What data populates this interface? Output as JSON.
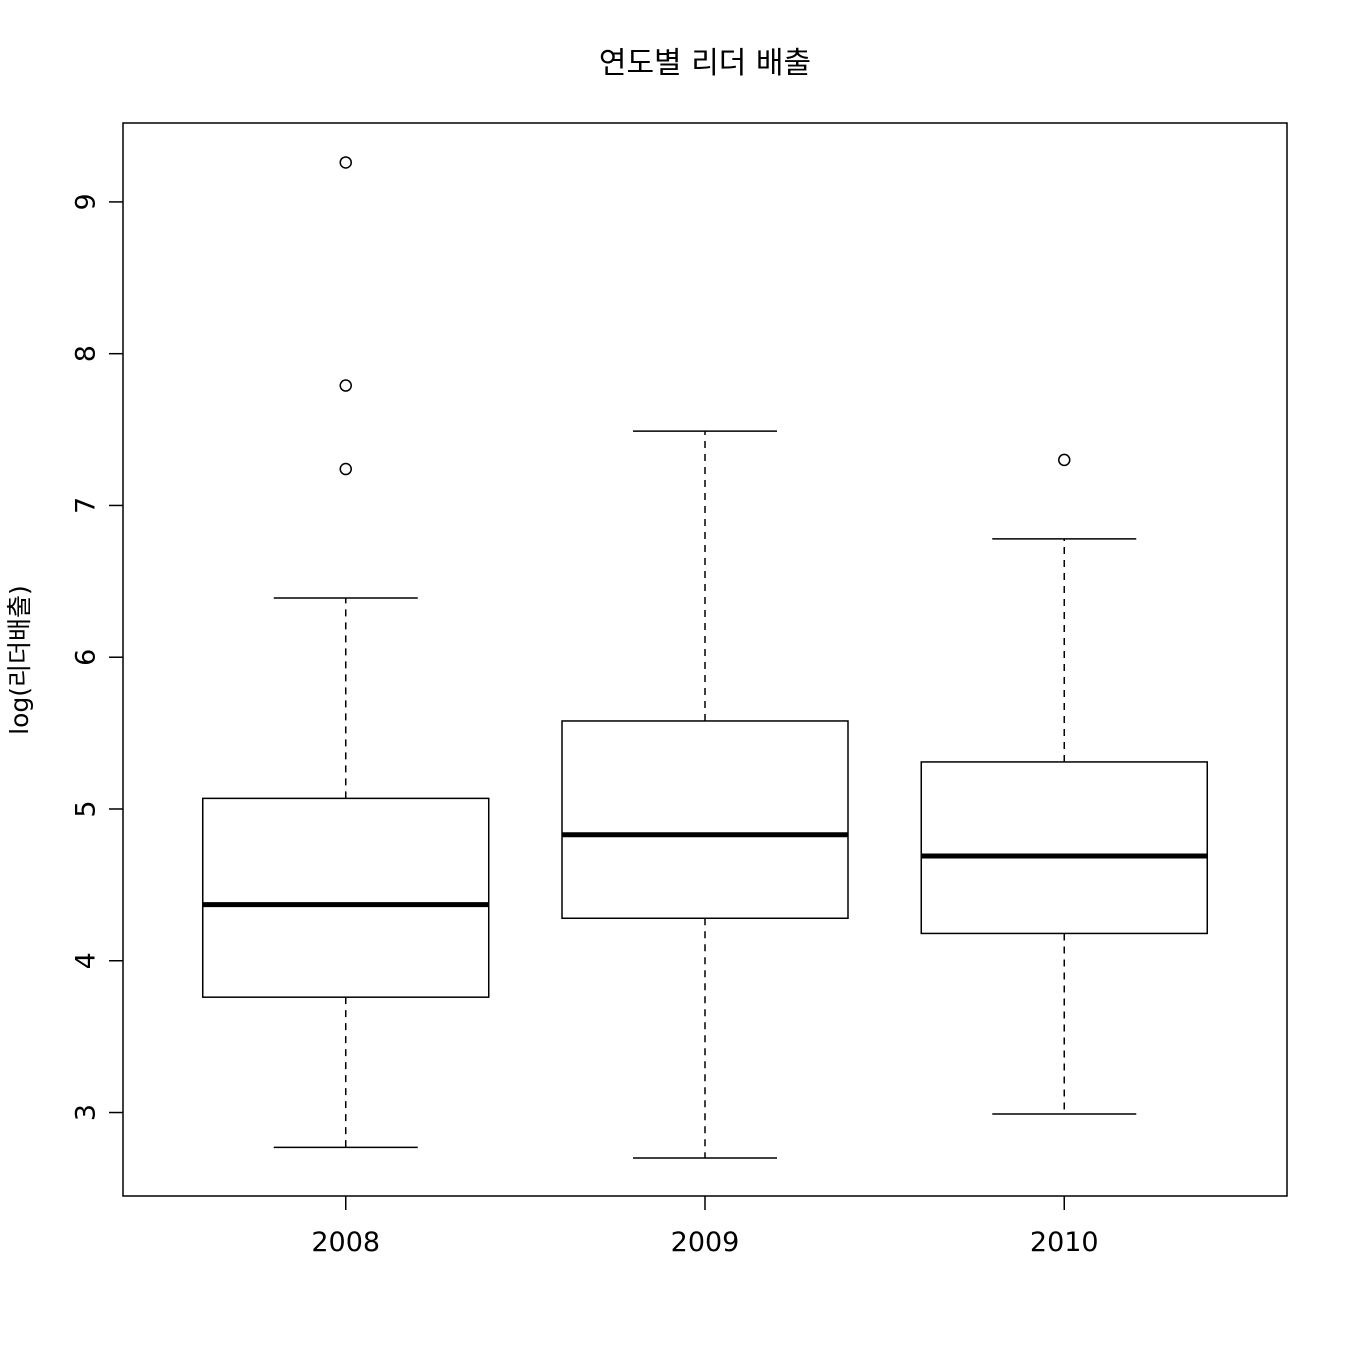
{
  "chart_data": {
    "type": "boxplot",
    "title": "연도별 리더 배출",
    "xlabel": "",
    "ylabel": "log(리더배출)",
    "categories": [
      "2008",
      "2009",
      "2010"
    ],
    "yticks": [
      3,
      4,
      5,
      6,
      7,
      8,
      9
    ],
    "ylim": [
      2.45,
      9.52
    ],
    "grid": false,
    "boxes": [
      {
        "category": "2008",
        "whisker_low": 2.77,
        "q1": 3.76,
        "median": 4.37,
        "q3": 5.07,
        "whisker_high": 6.39,
        "outliers": [
          7.24,
          7.79,
          9.26
        ]
      },
      {
        "category": "2009",
        "whisker_low": 2.7,
        "q1": 4.28,
        "median": 4.83,
        "q3": 5.58,
        "whisker_high": 7.49,
        "outliers": []
      },
      {
        "category": "2010",
        "whisker_low": 2.99,
        "q1": 4.18,
        "median": 4.69,
        "q3": 5.31,
        "whisker_high": 6.78,
        "outliers": [
          7.3
        ]
      }
    ]
  }
}
